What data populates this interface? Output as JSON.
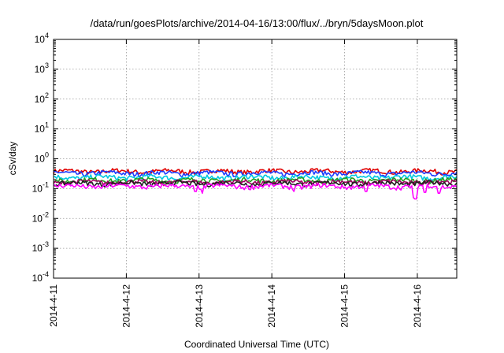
{
  "chart_data": {
    "type": "line",
    "title": "/data/run/goesPlots/archive/2014-04-16/13:00/flux/../bryn/5daysMoon.plot",
    "xlabel": "Coordinated Universal Time (UTC)",
    "ylabel": "cSv/day",
    "yscale": "log",
    "ylim": [
      0.0001,
      10000
    ],
    "xlim": [
      "2014-04-11 00:00",
      "2014-04-16 13:00"
    ],
    "grid": true,
    "legend": "none",
    "x_ticks": [
      "2014-4-11",
      "2014-4-12",
      "2014-4-13",
      "2014-4-14",
      "2014-4-15",
      "2014-4-16"
    ],
    "y_ticks": [
      {
        "base": "10",
        "exp": "-4"
      },
      {
        "base": "10",
        "exp": "-3"
      },
      {
        "base": "10",
        "exp": "-2"
      },
      {
        "base": "10",
        "exp": "-1"
      },
      {
        "base": "10",
        "exp": "0"
      },
      {
        "base": "10",
        "exp": "1"
      },
      {
        "base": "10",
        "exp": "2"
      },
      {
        "base": "10",
        "exp": "3"
      },
      {
        "base": "10",
        "exp": "4"
      }
    ],
    "series": [
      {
        "color": "#e00000",
        "level": 0.38,
        "dips": []
      },
      {
        "color": "#1e3cff",
        "level": 0.33,
        "dips": []
      },
      {
        "color": "#00c8e0",
        "level": 0.24,
        "dips": []
      },
      {
        "color": "#20a020",
        "level": 0.19,
        "dips": []
      },
      {
        "color": "#a00060",
        "level": 0.165,
        "dips": []
      },
      {
        "color": "#202020",
        "level": 0.15,
        "dips": []
      },
      {
        "color": "#ff00ff",
        "level": 0.12,
        "dips": [
          {
            "day": 1.95,
            "value": 0.08
          },
          {
            "day": 2.05,
            "value": 0.07
          },
          {
            "day": 3.3,
            "value": 0.08
          },
          {
            "day": 4.3,
            "value": 0.08
          },
          {
            "day": 4.95,
            "value": 0.05
          },
          {
            "day": 4.98,
            "value": 0.045
          },
          {
            "day": 5.1,
            "value": 0.075
          },
          {
            "day": 5.3,
            "value": 0.07
          }
        ]
      }
    ]
  }
}
